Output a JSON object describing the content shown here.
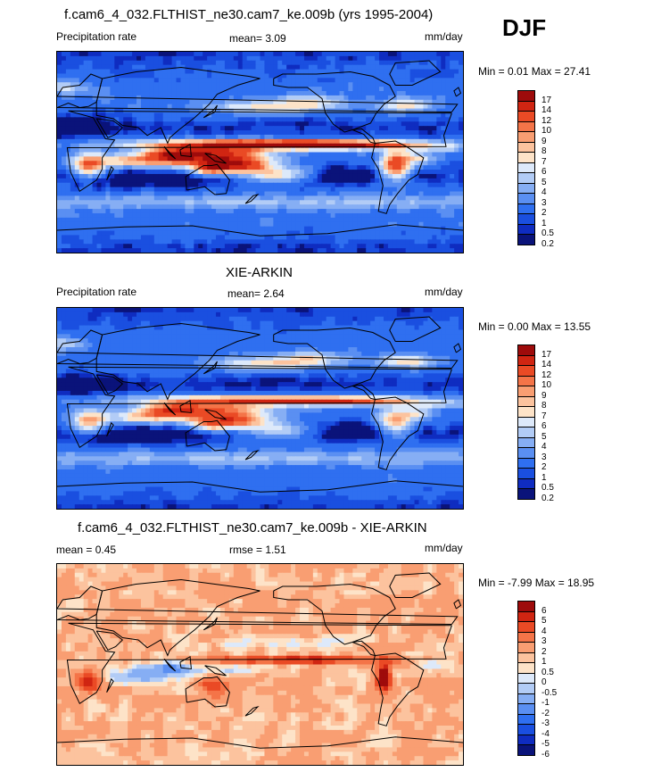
{
  "season": "DJF",
  "colors": {
    "precip_palette": [
      "#0a137a",
      "#0f2cc0",
      "#1a4fe0",
      "#2f6ff0",
      "#5a8ff2",
      "#86aef4",
      "#b2ccf6",
      "#dde9fa",
      "#fde3c8",
      "#fcc39e",
      "#f99e72",
      "#f47448",
      "#ea4a25",
      "#d02512",
      "#9e0b0b"
    ],
    "diff_palette": [
      "#0a137a",
      "#0f2cc0",
      "#1a4fe0",
      "#2f6ff0",
      "#5a8ff2",
      "#86aef4",
      "#b2ccf6",
      "#dde9fa",
      "#fde3c8",
      "#fcc39e",
      "#f99e72",
      "#f47448",
      "#ea4a25",
      "#d02512",
      "#9e0b0b"
    ]
  },
  "panels": [
    {
      "title": "f.cam6_4_032.FLTHIST_ne30.cam7_ke.009b (yrs 1995-2004)",
      "left_label": "Precipitation rate",
      "center_label": "mean=   3.09",
      "units": "mm/day",
      "minmax": "Min =   0.01 Max =  27.41",
      "colorbar_labels": [
        "17",
        "14",
        "12",
        "10",
        "9",
        "8",
        "7",
        "6",
        "5",
        "4",
        "3",
        "2",
        "1",
        "0.5",
        "0.2"
      ],
      "field": "model"
    },
    {
      "title": "XIE-ARKIN",
      "left_label": "Precipitation rate",
      "center_label": "mean=   2.64",
      "units": "mm/day",
      "minmax": "Min =   0.00 Max =  13.55",
      "colorbar_labels": [
        "17",
        "14",
        "12",
        "10",
        "9",
        "8",
        "7",
        "6",
        "5",
        "4",
        "3",
        "2",
        "1",
        "0.5",
        "0.2"
      ],
      "field": "obs"
    },
    {
      "title": "f.cam6_4_032.FLTHIST_ne30.cam7_ke.009b - XIE-ARKIN",
      "left_label": "mean =   0.45",
      "center_label": "rmse =   1.51",
      "units": "mm/day",
      "minmax": "Min =  -7.99 Max =  18.95",
      "colorbar_labels": [
        "6",
        "5",
        "4",
        "3",
        "2",
        "1",
        "0.5",
        "0",
        "-0.5",
        "-1",
        "-2",
        "-3",
        "-4",
        "-5",
        "-6"
      ],
      "field": "diff"
    }
  ],
  "chart_data": [
    {
      "type": "heatmap",
      "title": "f.cam6_4_032.FLTHIST_ne30.cam7_ke.009b (yrs 1995-2004)",
      "subtitle": "DJF",
      "variable": "Precipitation rate",
      "units": "mm/day",
      "mean": 3.09,
      "min": 0.01,
      "max": 27.41,
      "contour_levels": [
        0.2,
        0.5,
        1,
        2,
        3,
        4,
        5,
        6,
        7,
        8,
        9,
        10,
        12,
        14,
        17
      ],
      "features": [
        "ITCZ band along the equator",
        "SPCZ extending southeast",
        "storm tracks in N Pacific and N Atlantic",
        "South America and southern Africa maxima"
      ]
    },
    {
      "type": "heatmap",
      "title": "XIE-ARKIN",
      "variable": "Precipitation rate",
      "units": "mm/day",
      "mean": 2.64,
      "min": 0.0,
      "max": 13.55,
      "contour_levels": [
        0.2,
        0.5,
        1,
        2,
        3,
        4,
        5,
        6,
        7,
        8,
        9,
        10,
        12,
        14,
        17
      ]
    },
    {
      "type": "heatmap",
      "title": "f.cam6_4_032.FLTHIST_ne30.cam7_ke.009b - XIE-ARKIN",
      "units": "mm/day",
      "mean": 0.45,
      "rmse": 1.51,
      "min": -7.99,
      "max": 18.95,
      "contour_levels": [
        -6,
        -5,
        -4,
        -3,
        -2,
        -1,
        -0.5,
        0,
        0.5,
        1,
        2,
        3,
        4,
        5,
        6
      ]
    }
  ]
}
